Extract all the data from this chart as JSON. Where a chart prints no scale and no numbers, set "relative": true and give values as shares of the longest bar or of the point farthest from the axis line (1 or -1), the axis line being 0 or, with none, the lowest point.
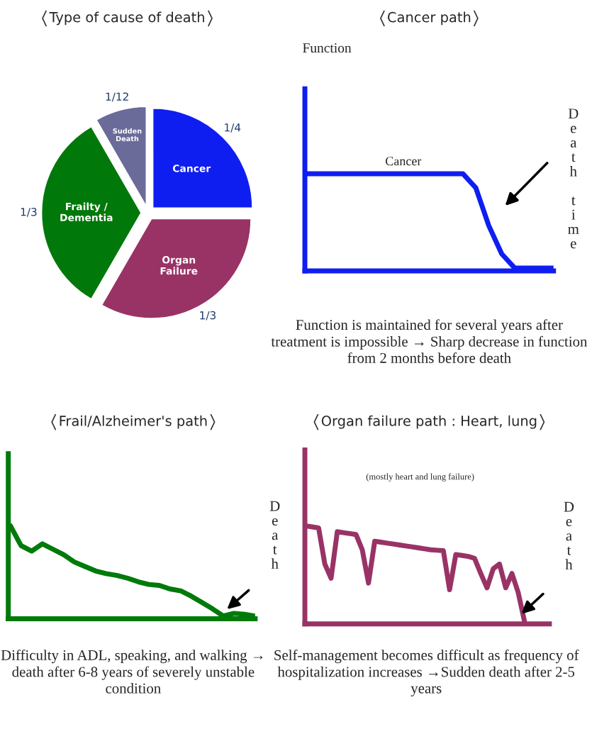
{
  "chart_data": [
    {
      "type": "pie",
      "title": "Type of cause of death",
      "categories": [
        "Sudden Death",
        "Cancer",
        "Organ Failure",
        "Frailty / Dementia"
      ],
      "values": [
        0.0833,
        0.25,
        0.3333,
        0.3333
      ],
      "value_labels": [
        "1/12",
        "1/4",
        "1/3",
        "1/3"
      ],
      "colors": [
        "#6b6b9a",
        "#0f1ef0",
        "#993366",
        "#00780a"
      ],
      "legend": false
    },
    {
      "type": "line",
      "relative": true,
      "title": "Cancer path",
      "ylabel": "Function",
      "y2label": "Death time",
      "categories": [
        null,
        null,
        null,
        null,
        null,
        null,
        null,
        null,
        null,
        null,
        null,
        null,
        null,
        null,
        null,
        null,
        null,
        null,
        null,
        null
      ],
      "series": [
        {
          "name": "Cancer",
          "color": "#0f1ef0",
          "values": [
            1,
            1,
            1,
            1,
            1,
            1,
            1,
            1,
            1,
            1,
            1,
            1,
            1,
            0.85,
            0.45,
            0.15,
            0,
            0,
            0,
            0
          ]
        }
      ],
      "annotations": [
        "Function is maintained for several years after treatment is impossible → Sharp decrease in function from 2 months before death"
      ]
    },
    {
      "type": "line",
      "relative": true,
      "title": "Frail/Alzheimer's path",
      "y2label": "Death",
      "categories": [
        null,
        null,
        null,
        null,
        null,
        null,
        null,
        null,
        null,
        null,
        null,
        null,
        null,
        null,
        null,
        null,
        null,
        null,
        null,
        null,
        null,
        null,
        null,
        null
      ],
      "series": [
        {
          "color": "#007a0a",
          "values": [
            1,
            0.78,
            0.72,
            0.8,
            0.74,
            0.68,
            0.6,
            0.55,
            0.5,
            0.47,
            0.45,
            0.42,
            0.38,
            0.35,
            0.34,
            0.3,
            0.28,
            0.22,
            0.15,
            0.08,
            0.0,
            0.03,
            0.02,
            0.0
          ]
        }
      ],
      "annotations": [
        "Difficulty in ADL, speaking, and walking → death after 6-8 years of severely unstable condition"
      ]
    },
    {
      "type": "line",
      "relative": true,
      "title": "Organ failure path : Heart, lung",
      "y2label": "Death",
      "categories": [
        null,
        null,
        null,
        null,
        null,
        null,
        null,
        null,
        null,
        null,
        null,
        null,
        null,
        null,
        null,
        null,
        null,
        null,
        null,
        null,
        null,
        null,
        null,
        null,
        null,
        null,
        null,
        null,
        null,
        null,
        null,
        null,
        null,
        null,
        null,
        null,
        null,
        null,
        null,
        null
      ],
      "series": [
        {
          "color": "#993366",
          "values": [
            1,
            0.99,
            0.98,
            0.6,
            0.45,
            0.94,
            0.93,
            0.92,
            0.91,
            0.75,
            0.4,
            0.84,
            0.83,
            0.82,
            0.81,
            0.8,
            0.79,
            0.78,
            0.77,
            0.76,
            0.75,
            0.745,
            0.74,
            0.33,
            0.7,
            0.69,
            0.68,
            0.66,
            0.5,
            0.35,
            0.55,
            0.6,
            0.35,
            0.5,
            0.3,
            0,
            null,
            null,
            null,
            null
          ]
        }
      ],
      "annotations": [
        "(mostly heart and lung failure)",
        "Self-management becomes difficult as frequency of hospitalization increases →Sudden death after 2-5 years"
      ]
    }
  ]
}
